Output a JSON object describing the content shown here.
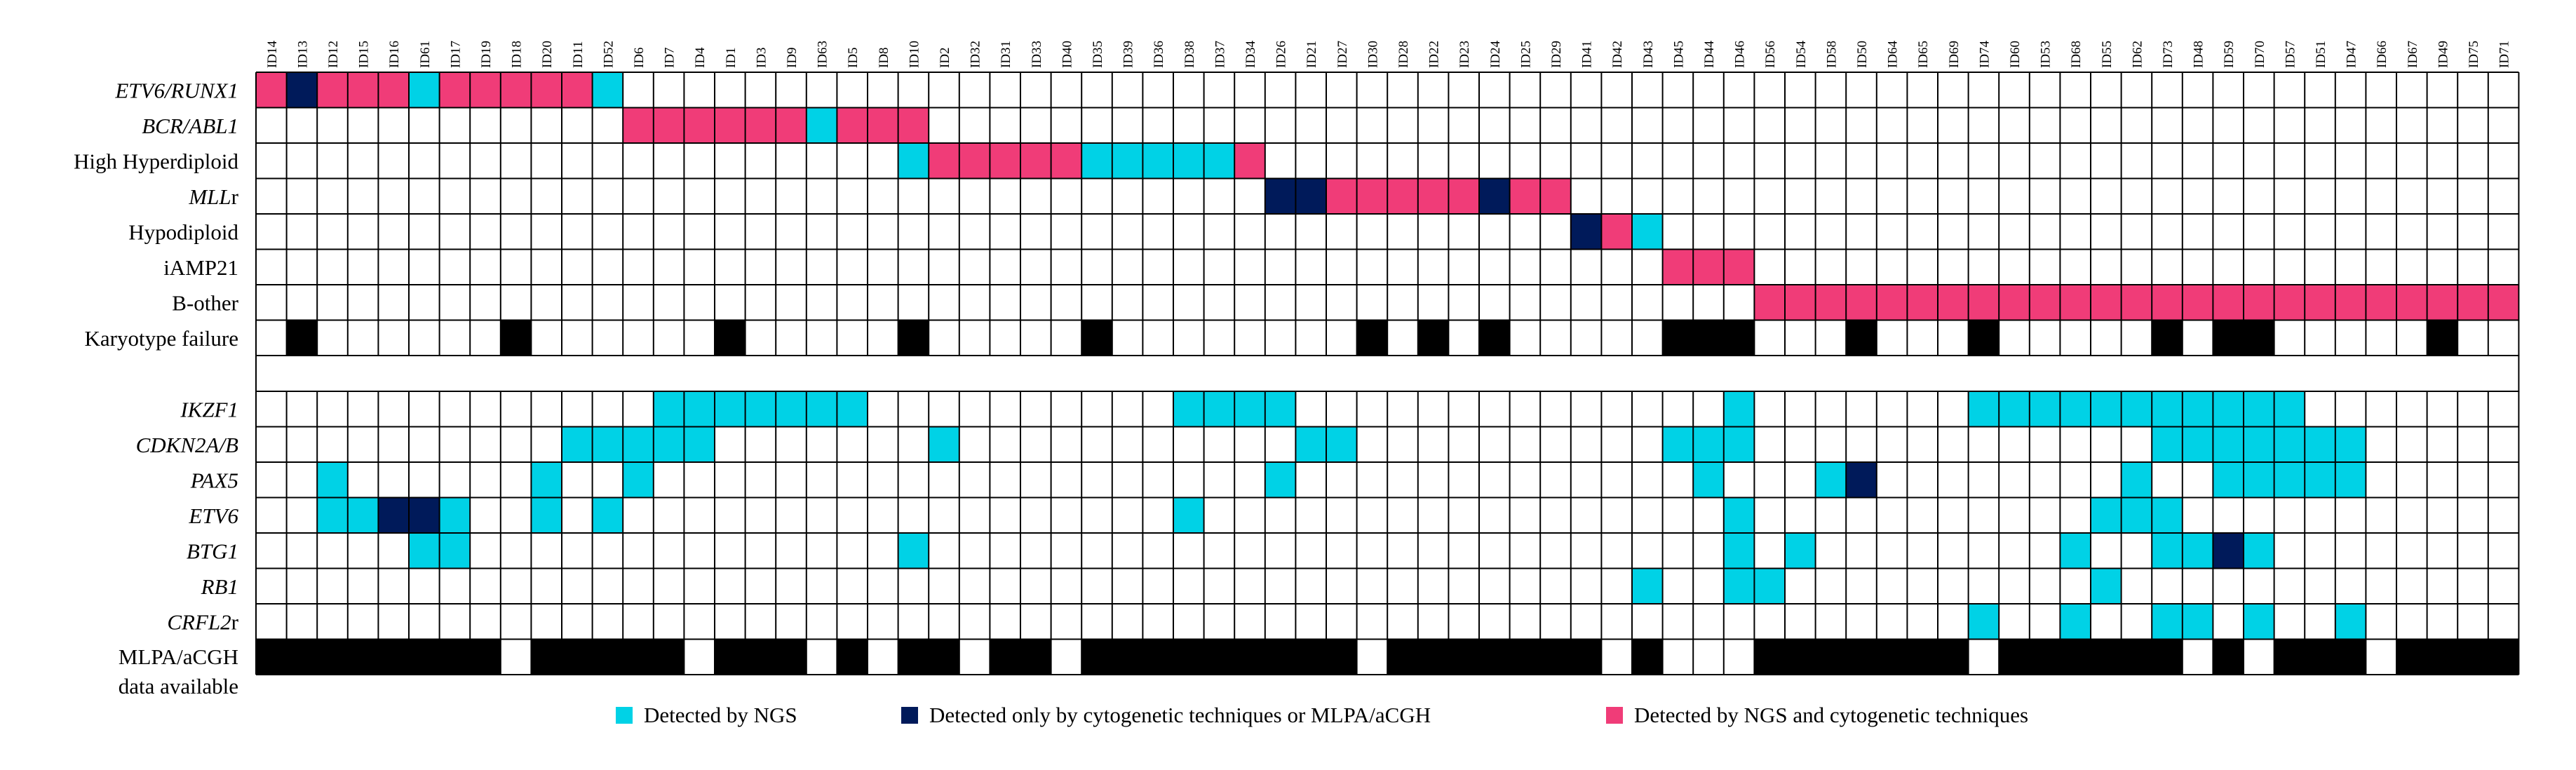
{
  "figure": {
    "sample_ids": [
      "ID14",
      "ID13",
      "ID12",
      "ID15",
      "ID16",
      "ID61",
      "ID17",
      "ID19",
      "ID18",
      "ID20",
      "ID11",
      "ID52",
      "ID6",
      "ID7",
      "ID4",
      "ID1",
      "ID3",
      "ID9",
      "ID63",
      "ID5",
      "ID8",
      "ID10",
      "ID2",
      "ID32",
      "ID31",
      "ID33",
      "ID40",
      "ID35",
      "ID39",
      "ID36",
      "ID38",
      "ID37",
      "ID34",
      "ID26",
      "ID21",
      "ID27",
      "ID30",
      "ID28",
      "ID22",
      "ID23",
      "ID24",
      "ID25",
      "ID29",
      "ID41",
      "ID42",
      "ID43",
      "ID45",
      "ID44",
      "ID46",
      "ID56",
      "ID54",
      "ID58",
      "ID50",
      "ID64",
      "ID65",
      "ID69",
      "ID74",
      "ID60",
      "ID53",
      "ID68",
      "ID55",
      "ID62",
      "ID73",
      "ID48",
      "ID59",
      "ID70",
      "ID57",
      "ID51",
      "ID47",
      "ID66",
      "ID67",
      "ID49",
      "ID75",
      "ID71"
    ],
    "subtype_rows": [
      {
        "label": "ETV6/RUNX1",
        "italic": true,
        "cells": {
          "0": "pink",
          "1": "navy",
          "2": "pink",
          "3": "pink",
          "4": "pink",
          "5": "cyan",
          "6": "pink",
          "7": "pink",
          "8": "pink",
          "9": "pink",
          "10": "pink",
          "11": "cyan"
        }
      },
      {
        "label": "BCR/ABL1",
        "italic": true,
        "cells": {
          "12": "pink",
          "13": "pink",
          "14": "pink",
          "15": "pink",
          "16": "pink",
          "17": "pink",
          "18": "cyan",
          "19": "pink",
          "20": "pink",
          "21": "pink"
        }
      },
      {
        "label": "High Hyperdiploid",
        "italic": false,
        "cells": {
          "21": "cyan",
          "22": "pink",
          "23": "pink",
          "24": "pink",
          "25": "pink",
          "26": "pink",
          "27": "cyan",
          "28": "cyan",
          "29": "cyan",
          "30": "cyan",
          "31": "cyan",
          "32": "pink"
        }
      },
      {
        "label": "MLL",
        "suffix": "r",
        "italic": true,
        "cells": {
          "33": "navy",
          "34": "navy",
          "35": "pink",
          "36": "pink",
          "37": "pink",
          "38": "pink",
          "39": "pink",
          "40": "navy",
          "41": "pink",
          "42": "pink"
        }
      },
      {
        "label": "Hypodiploid",
        "italic": false,
        "cells": {
          "43": "navy",
          "44": "pink",
          "45": "cyan"
        }
      },
      {
        "label": "iAMP21",
        "italic": false,
        "cells": {
          "46": "pink",
          "47": "pink",
          "48": "pink"
        }
      },
      {
        "label": "B-other",
        "italic": false,
        "cells": {
          "49": "pink",
          "50": "pink",
          "51": "pink",
          "52": "pink",
          "53": "pink",
          "54": "pink",
          "55": "pink",
          "56": "pink",
          "57": "pink",
          "58": "pink",
          "59": "pink",
          "60": "pink",
          "61": "pink",
          "62": "pink",
          "63": "pink",
          "64": "pink",
          "65": "pink",
          "66": "pink",
          "67": "pink",
          "68": "pink",
          "69": "pink",
          "70": "pink",
          "71": "pink",
          "72": "pink",
          "73": "pink"
        }
      },
      {
        "label": "Karyotype failure",
        "italic": false,
        "cells": {
          "1": "black",
          "8": "black",
          "15": "black",
          "21": "black",
          "27": "black",
          "36": "black",
          "38": "black",
          "40": "black",
          "46": "black",
          "47": "black",
          "48": "black",
          "52": "black",
          "56": "black",
          "62": "black",
          "64": "black",
          "65": "black",
          "71": "black"
        }
      }
    ],
    "gene_rows": [
      {
        "label": "IKZF1",
        "italic": true,
        "cells": {
          "13": "cyan",
          "14": "cyan",
          "15": "cyan",
          "16": "cyan",
          "17": "cyan",
          "18": "cyan",
          "19": "cyan",
          "30": "cyan",
          "31": "cyan",
          "32": "cyan",
          "33": "cyan",
          "48": "cyan",
          "56": "cyan",
          "57": "cyan",
          "58": "cyan",
          "59": "cyan",
          "60": "cyan",
          "61": "cyan",
          "62": "cyan",
          "63": "cyan",
          "64": "cyan",
          "65": "cyan",
          "66": "cyan"
        }
      },
      {
        "label": "CDKN2A/B",
        "italic": true,
        "cells": {
          "10": "cyan",
          "11": "cyan",
          "12": "cyan",
          "13": "cyan",
          "14": "cyan",
          "22": "cyan",
          "34": "cyan",
          "35": "cyan",
          "46": "cyan",
          "47": "cyan",
          "48": "cyan",
          "62": "cyan",
          "63": "cyan",
          "64": "cyan",
          "65": "cyan",
          "66": "cyan",
          "67": "cyan",
          "68": "cyan"
        }
      },
      {
        "label": "PAX5",
        "italic": true,
        "cells": {
          "2": "cyan",
          "9": "cyan",
          "12": "cyan",
          "33": "cyan",
          "47": "cyan",
          "51": "cyan",
          "52": "navy",
          "61": "cyan",
          "64": "cyan",
          "65": "cyan",
          "66": "cyan",
          "67": "cyan",
          "68": "cyan"
        }
      },
      {
        "label": "ETV6",
        "italic": true,
        "cells": {
          "2": "cyan",
          "3": "cyan",
          "4": "navy",
          "5": "navy",
          "6": "cyan",
          "9": "cyan",
          "11": "cyan",
          "30": "cyan",
          "48": "cyan",
          "60": "cyan",
          "61": "cyan",
          "62": "cyan"
        }
      },
      {
        "label": "BTG1",
        "italic": true,
        "cells": {
          "5": "cyan",
          "6": "cyan",
          "21": "cyan",
          "48": "cyan",
          "50": "cyan",
          "59": "cyan",
          "62": "cyan",
          "63": "cyan",
          "64": "navy",
          "65": "cyan"
        }
      },
      {
        "label": "RB1",
        "italic": true,
        "cells": {
          "45": "cyan",
          "48": "cyan",
          "49": "cyan",
          "60": "cyan"
        }
      },
      {
        "label": "CRFL2",
        "suffix": "r",
        "italic": true,
        "cells": {
          "56": "cyan",
          "59": "cyan",
          "62": "cyan",
          "63": "cyan",
          "65": "cyan",
          "68": "cyan"
        }
      },
      {
        "label": "MLPA/aCGH",
        "label2": "data available",
        "italic": false,
        "cells": {
          "0": "black",
          "1": "black",
          "2": "black",
          "3": "black",
          "4": "black",
          "5": "black",
          "6": "black",
          "7": "black",
          "9": "black",
          "10": "black",
          "11": "black",
          "12": "black",
          "13": "black",
          "15": "black",
          "16": "black",
          "17": "black",
          "19": "black",
          "21": "black",
          "22": "black",
          "24": "black",
          "25": "black",
          "27": "black",
          "28": "black",
          "29": "black",
          "30": "black",
          "31": "black",
          "32": "black",
          "33": "black",
          "34": "black",
          "35": "black",
          "37": "black",
          "38": "black",
          "39": "black",
          "40": "black",
          "41": "black",
          "42": "black",
          "43": "black",
          "45": "black",
          "49": "black",
          "50": "black",
          "51": "black",
          "52": "black",
          "53": "black",
          "54": "black",
          "55": "black",
          "57": "black",
          "58": "black",
          "59": "black",
          "60": "black",
          "61": "black",
          "62": "black",
          "64": "black",
          "66": "black",
          "67": "black",
          "68": "black",
          "70": "black",
          "71": "black",
          "72": "black",
          "73": "black"
        }
      }
    ],
    "colors": {
      "cyan": "#00D2E6",
      "navy": "#001A5A",
      "pink": "#F03C78",
      "black": "#000000",
      "grid": "#000000"
    },
    "legend": [
      {
        "color": "cyan",
        "text": "Detected by NGS"
      },
      {
        "color": "navy",
        "text": "Detected only by cytogenetic techniques or MLPA/aCGH"
      },
      {
        "color": "pink",
        "text": "Detected by NGS and cytogenetic techniques"
      }
    ]
  }
}
